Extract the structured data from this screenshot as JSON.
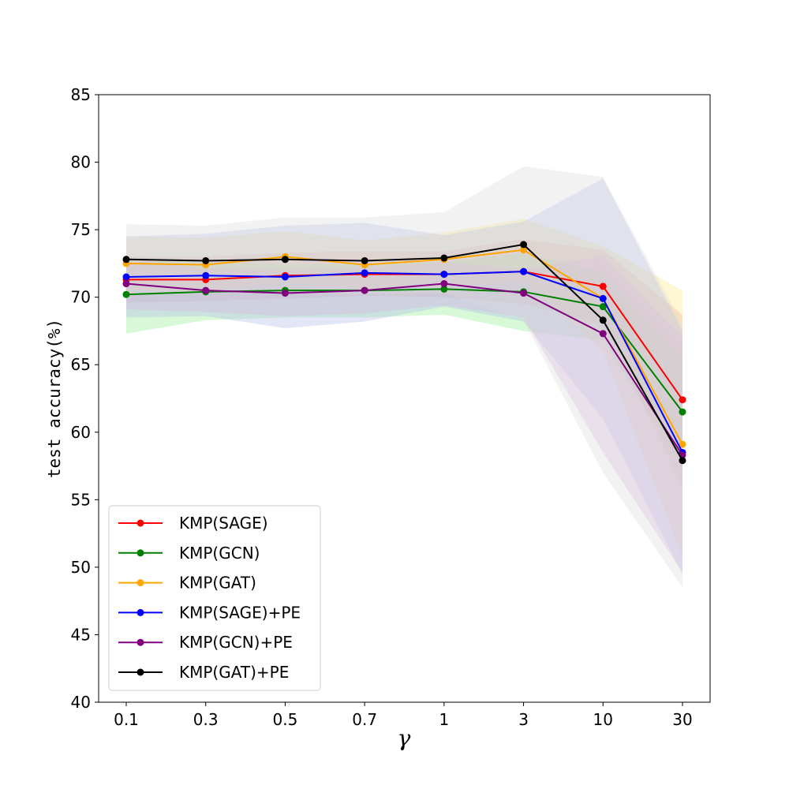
{
  "chart_data": {
    "type": "line",
    "title": "",
    "xlabel": "γ",
    "ylabel": "test accuracy(%)",
    "categories": [
      "0.1",
      "0.3",
      "0.5",
      "0.7",
      "1",
      "3",
      "10",
      "30"
    ],
    "ylim": [
      40,
      85
    ],
    "yticks": [
      40,
      45,
      50,
      55,
      60,
      65,
      70,
      75,
      80,
      85
    ],
    "legend_position": "lower-left",
    "series": [
      {
        "name": "KMP(SAGE)",
        "color": "#ff0000",
        "band_color": "#f4a0a0",
        "values": [
          71.3,
          71.3,
          71.6,
          71.7,
          71.7,
          71.9,
          70.8,
          62.4
        ],
        "lower": [
          69.6,
          69.7,
          69.9,
          70.1,
          70.0,
          69.5,
          68.0,
          56.0
        ],
        "upper": [
          73.0,
          73.0,
          73.3,
          73.4,
          73.4,
          74.3,
          73.5,
          68.7
        ]
      },
      {
        "name": "KMP(GCN)",
        "color": "#008000",
        "band_color": "#90ee90",
        "values": [
          70.2,
          70.4,
          70.5,
          70.5,
          70.6,
          70.4,
          69.3,
          61.5
        ],
        "lower": [
          67.3,
          68.3,
          68.5,
          68.5,
          68.7,
          67.5,
          66.8,
          57.5
        ],
        "upper": [
          73.0,
          72.6,
          72.4,
          72.5,
          72.6,
          73.3,
          71.8,
          65.5
        ]
      },
      {
        "name": "KMP(GAT)",
        "color": "#ffa500",
        "band_color": "#ffe680",
        "values": [
          72.5,
          72.4,
          73.0,
          72.4,
          72.8,
          73.5,
          69.9,
          59.1
        ],
        "lower": [
          70.5,
          70.4,
          71.1,
          70.6,
          70.8,
          71.2,
          66.0,
          50.8
        ],
        "upper": [
          74.5,
          74.4,
          74.9,
          74.2,
          74.8,
          75.8,
          73.8,
          70.5
        ]
      },
      {
        "name": "KMP(SAGE)+PE",
        "color": "#0000ff",
        "band_color": "#b0b8e8",
        "values": [
          71.5,
          71.6,
          71.5,
          71.8,
          71.7,
          71.9,
          69.9,
          58.5
        ],
        "lower": [
          68.5,
          68.6,
          67.7,
          68.2,
          69.3,
          68.2,
          61.0,
          49.5
        ],
        "upper": [
          74.5,
          74.7,
          75.3,
          75.5,
          74.6,
          75.6,
          78.8,
          67.5
        ]
      },
      {
        "name": "KMP(GCN)+PE",
        "color": "#800080",
        "band_color": "#d9b3e6",
        "values": [
          71.0,
          70.5,
          70.3,
          70.5,
          71.0,
          70.3,
          67.3,
          58.3
        ],
        "lower": [
          69.1,
          68.9,
          68.6,
          68.8,
          69.4,
          68.5,
          58.5,
          49.6
        ],
        "upper": [
          72.9,
          72.1,
          72.0,
          72.2,
          72.6,
          72.1,
          73.0,
          67.0
        ]
      },
      {
        "name": "KMP(GAT)+PE",
        "color": "#000000",
        "band_color": "#d9d9d9",
        "values": [
          72.8,
          72.7,
          72.8,
          72.7,
          72.9,
          73.9,
          68.3,
          57.9
        ],
        "lower": [
          70.2,
          70.3,
          70.3,
          70.2,
          70.3,
          68.3,
          57.0,
          48.5
        ],
        "upper": [
          75.4,
          75.3,
          75.9,
          75.9,
          76.3,
          79.7,
          78.9,
          68.0
        ]
      }
    ]
  }
}
